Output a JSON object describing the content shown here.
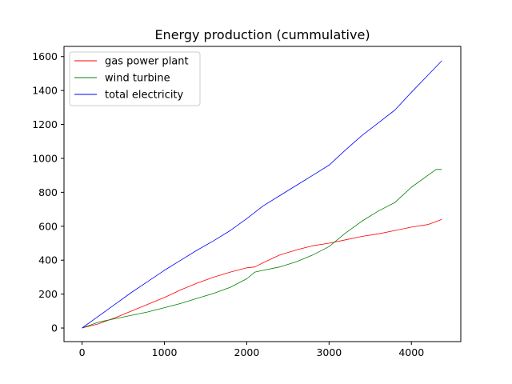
{
  "chart_data": {
    "type": "line",
    "title": "Energy production (cummulative)",
    "xlabel": "",
    "ylabel": "",
    "xlim": [
      -220,
      4600
    ],
    "ylim": [
      -80,
      1660
    ],
    "xticks": [
      0,
      1000,
      2000,
      3000,
      4000
    ],
    "yticks": [
      0,
      200,
      400,
      600,
      800,
      1000,
      1200,
      1400,
      1600
    ],
    "grid": false,
    "legend_position": "top-left",
    "series": [
      {
        "name": "gas power plant",
        "color": "#ff0000",
        "x": [
          0,
          200,
          400,
          600,
          800,
          1000,
          1200,
          1400,
          1600,
          1800,
          2000,
          2100,
          2200,
          2400,
          2600,
          2800,
          3000,
          3200,
          3400,
          3600,
          3800,
          4000,
          4200,
          4370
        ],
        "y": [
          0,
          25,
          60,
          100,
          140,
          180,
          225,
          265,
          300,
          330,
          355,
          360,
          385,
          430,
          460,
          485,
          500,
          520,
          540,
          555,
          575,
          595,
          610,
          640
        ]
      },
      {
        "name": "wind turbine",
        "color": "#008000",
        "x": [
          0,
          200,
          400,
          600,
          800,
          1000,
          1200,
          1400,
          1600,
          1800,
          2000,
          2100,
          2200,
          2400,
          2600,
          2800,
          3000,
          3200,
          3400,
          3600,
          3800,
          4000,
          4200,
          4300,
          4370
        ],
        "y": [
          0,
          35,
          55,
          75,
          95,
          120,
          145,
          175,
          205,
          240,
          290,
          330,
          340,
          360,
          390,
          430,
          480,
          560,
          630,
          690,
          740,
          830,
          900,
          935,
          935
        ]
      },
      {
        "name": "total electricity",
        "color": "#0000ff",
        "x": [
          0,
          200,
          400,
          600,
          800,
          1000,
          1200,
          1400,
          1600,
          1800,
          2000,
          2200,
          2400,
          2600,
          2800,
          3000,
          3200,
          3400,
          3600,
          3800,
          4000,
          4200,
          4370
        ],
        "y": [
          0,
          70,
          140,
          210,
          275,
          340,
          400,
          460,
          515,
          575,
          645,
          720,
          780,
          840,
          900,
          960,
          1050,
          1135,
          1210,
          1285,
          1390,
          1490,
          1575
        ]
      }
    ]
  }
}
